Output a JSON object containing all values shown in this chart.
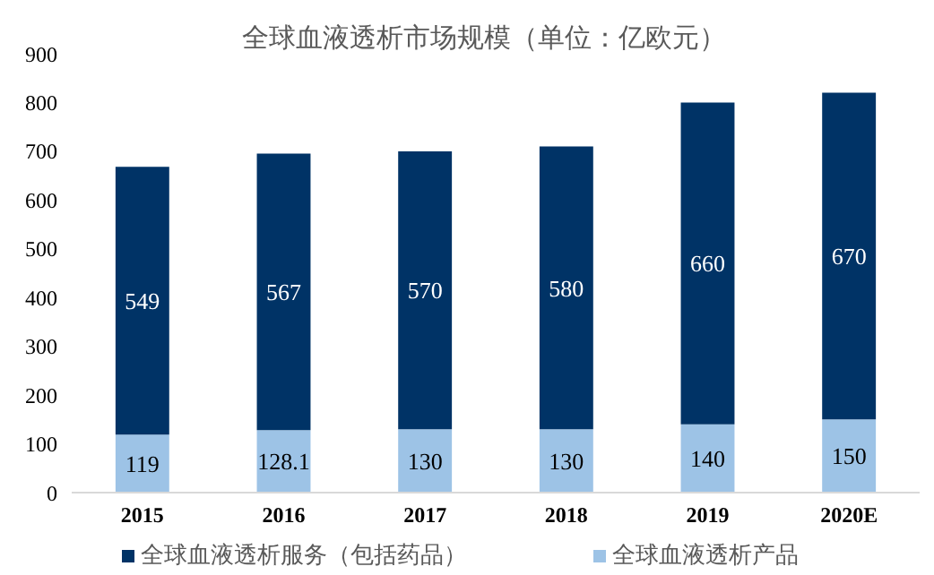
{
  "chart_data": {
    "type": "bar",
    "title": "全球血液透析市场规模（单位：亿欧元）",
    "categories": [
      "2015",
      "2016",
      "2017",
      "2018",
      "2019",
      "2020E"
    ],
    "stacked": true,
    "data_labels": true,
    "ylim": [
      0,
      900
    ],
    "yticks": [
      0,
      100,
      200,
      300,
      400,
      500,
      600,
      700,
      800,
      900
    ],
    "legend": "bottom",
    "series": [
      {
        "name": "全球血液透析产品",
        "color": "#9dc3e6",
        "values": [
          119,
          128.1,
          130,
          130,
          140,
          150
        ]
      },
      {
        "name": "全球血液透析服务（包括药品）",
        "color": "#003366",
        "values": [
          549,
          567,
          570,
          580,
          660,
          670
        ]
      }
    ]
  }
}
